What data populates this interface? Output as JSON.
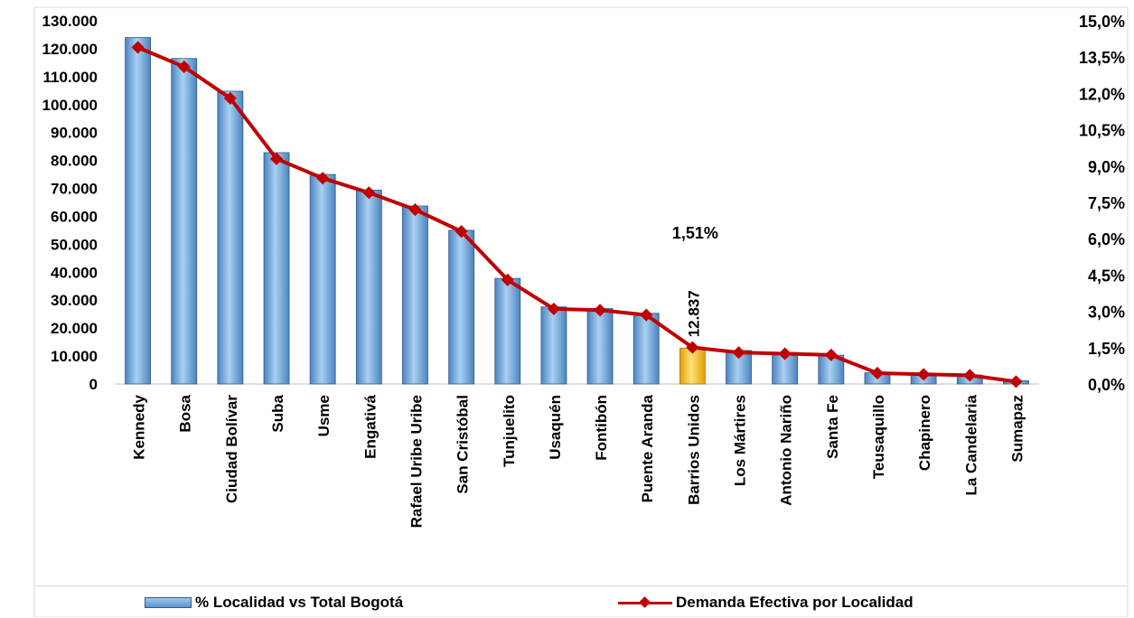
{
  "chart_data": {
    "type": "bar",
    "categories": [
      "Kennedy",
      "Bosa",
      "Ciudad Bolívar",
      "Suba",
      "Usme",
      "Engativá",
      "Rafael Uribe Uribe",
      "San Cristóbal",
      "Tunjuelito",
      "Usaquén",
      "Fontibón",
      "Puente Aranda",
      "Barrios Unidos",
      "Los Mártires",
      "Antonio Nariño",
      "Santa Fe",
      "Teusaquillo",
      "Chapinero",
      "La Candelaria",
      "Sumapaz"
    ],
    "series": [
      {
        "name": "% Localidad vs Total Bogotá",
        "kind": "bar",
        "axis": "left",
        "values": [
          124000,
          116500,
          104800,
          82800,
          75000,
          69400,
          63700,
          55000,
          37800,
          27600,
          27000,
          25300,
          12837,
          12000,
          11300,
          10300,
          4000,
          3500,
          3200,
          1200
        ]
      },
      {
        "name": "Demanda Efectiva por Localidad",
        "kind": "line",
        "axis": "right",
        "values": [
          13.9,
          13.1,
          11.8,
          9.3,
          8.5,
          7.9,
          7.2,
          6.3,
          4.3,
          3.1,
          3.05,
          2.85,
          1.51,
          1.3,
          1.25,
          1.2,
          0.45,
          0.4,
          0.36,
          0.1
        ]
      }
    ],
    "highlight": {
      "index": 12,
      "value_label": "12.837",
      "percent_label": "1,51%",
      "color": "#ffc000"
    },
    "y_left": {
      "lim": [
        0,
        130000
      ],
      "ticks": [
        "0",
        "10.000",
        "20.000",
        "30.000",
        "40.000",
        "50.000",
        "60.000",
        "70.000",
        "80.000",
        "90.000",
        "100.000",
        "110.000",
        "120.000",
        "130.000"
      ]
    },
    "y_right": {
      "lim": [
        0,
        15
      ],
      "ticks": [
        "0,0%",
        "1,5%",
        "3,0%",
        "4,5%",
        "6,0%",
        "7,5%",
        "9,0%",
        "10,5%",
        "12,0%",
        "13,5%",
        "15,0%"
      ]
    },
    "colors": {
      "bar": "#5a93cf",
      "bar_light": "#a9d0f2",
      "bar_edge": "#2f5b8a",
      "line": "#c00000",
      "highlight": "#ffc000"
    },
    "legend": {
      "position": "bottom"
    },
    "grid": false
  }
}
